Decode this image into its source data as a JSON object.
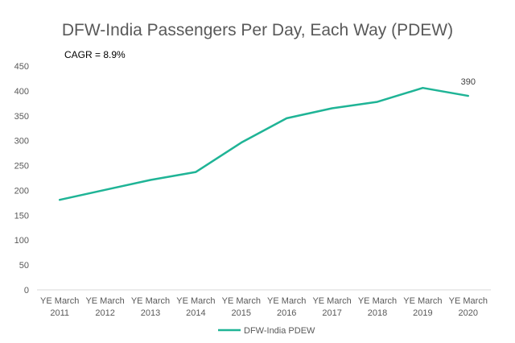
{
  "chart_data": {
    "type": "line",
    "title": "DFW-India Passengers Per Day, Each Way (PDEW)",
    "annotation": "CAGR = 8.9%",
    "xlabel": "",
    "ylabel": "",
    "categories": [
      [
        "YE March",
        "2011"
      ],
      [
        "YE March",
        "2012"
      ],
      [
        "YE March",
        "2013"
      ],
      [
        "YE March",
        "2014"
      ],
      [
        "YE March",
        "2015"
      ],
      [
        "YE March",
        "2016"
      ],
      [
        "YE March",
        "2017"
      ],
      [
        "YE March",
        "2018"
      ],
      [
        "YE March",
        "2019"
      ],
      [
        "YE March",
        "2020"
      ]
    ],
    "series": [
      {
        "name": "DFW-India PDEW",
        "color": "#1fb496",
        "values": [
          181,
          201,
          221,
          237,
          296,
          345,
          365,
          378,
          406,
          390
        ]
      }
    ],
    "data_labels": [
      {
        "index": 9,
        "text": "390"
      }
    ],
    "ylim": [
      0,
      450
    ],
    "yticks": [
      0,
      50,
      100,
      150,
      200,
      250,
      300,
      350,
      400,
      450
    ],
    "grid": false,
    "legend": "bottom"
  }
}
